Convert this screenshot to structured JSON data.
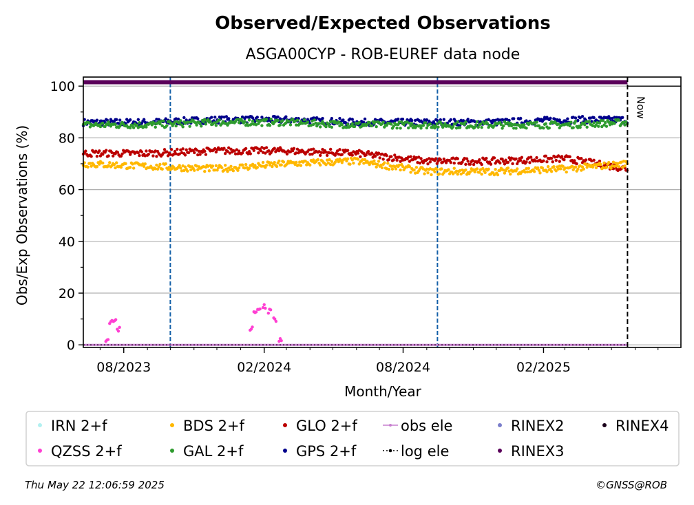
{
  "footer": {
    "timestamp": "Thu May 22 12:06:59 2025",
    "copyright": "©GNSS@ROB"
  },
  "chart_data": {
    "type": "scatter",
    "title": "Observed/Expected Observations",
    "subtitle": "ASGA00CYP - ROB-EUREF data node",
    "xlabel": "Month/Year",
    "ylabel": "Obs/Exp Observations (%)",
    "ylim": [
      -1,
      103.5
    ],
    "xlim": [
      "2023-06-09",
      "2025-07-31"
    ],
    "yticks": [
      0,
      20,
      40,
      60,
      80,
      100
    ],
    "xticks": [
      {
        "date": "2023-08-01",
        "label": "08/2023"
      },
      {
        "date": "2024-02-01",
        "label": "02/2024"
      },
      {
        "date": "2024-08-01",
        "label": "08/2024"
      },
      {
        "date": "2025-02-01",
        "label": "02/2025"
      }
    ],
    "grid": "horizontal",
    "now_label": "Now",
    "now_date": "2025-05-22",
    "event_lines": [
      "2023-10-01",
      "2024-09-15"
    ],
    "legend_position": "bottom",
    "legend": [
      {
        "name": "IRN 2+f",
        "color": "#b2f0f0",
        "marker": "dot"
      },
      {
        "name": "QZSS 2+f",
        "color": "#ff3fd2",
        "marker": "dot"
      },
      {
        "name": "BDS 2+f",
        "color": "#ffb800",
        "marker": "dot"
      },
      {
        "name": "GAL 2+f",
        "color": "#2e9b2e",
        "marker": "dot"
      },
      {
        "name": "GLO 2+f",
        "color": "#bb0000",
        "marker": "dot"
      },
      {
        "name": "GPS 2+f",
        "color": "#00008b",
        "marker": "dot"
      },
      {
        "name": "obs ele",
        "color": "#c77fcf",
        "marker": "line"
      },
      {
        "name": "log ele",
        "color": "#000000",
        "marker": "dotted-line"
      },
      {
        "name": "RINEX2",
        "color": "#7b7fcb",
        "marker": "dot"
      },
      {
        "name": "RINEX3",
        "color": "#5a005a",
        "marker": "dot"
      },
      {
        "name": "RINEX4",
        "color": "#1a001a",
        "marker": "dot"
      }
    ],
    "series": [
      {
        "name": "GPS 2+f",
        "color": "#00008b",
        "x": [
          "2023-06-09",
          "2023-09-01",
          "2023-12-01",
          "2024-03-01",
          "2024-06-01",
          "2024-09-01",
          "2024-12-01",
          "2025-03-01",
          "2025-05-22"
        ],
        "y": [
          86,
          86,
          87,
          87,
          86,
          86,
          86,
          87,
          87
        ]
      },
      {
        "name": "GAL 2+f",
        "color": "#2e9b2e",
        "x": [
          "2023-06-09",
          "2023-09-01",
          "2023-12-01",
          "2024-03-01",
          "2024-06-01",
          "2024-09-01",
          "2024-12-01",
          "2025-03-01",
          "2025-05-22"
        ],
        "y": [
          85,
          85,
          86,
          86,
          85,
          85,
          85,
          85,
          86
        ]
      },
      {
        "name": "GLO 2+f",
        "color": "#bb0000",
        "x": [
          "2023-06-09",
          "2023-09-01",
          "2023-12-01",
          "2024-03-01",
          "2024-06-01",
          "2024-09-01",
          "2024-12-01",
          "2025-03-01",
          "2025-05-22"
        ],
        "y": [
          74,
          74,
          75,
          75,
          74,
          71,
          71,
          72,
          68
        ]
      },
      {
        "name": "BDS 2+f",
        "color": "#ffb800",
        "x": [
          "2023-06-09",
          "2023-09-01",
          "2023-12-01",
          "2024-03-01",
          "2024-06-01",
          "2024-09-01",
          "2024-12-01",
          "2025-03-01",
          "2025-05-22"
        ],
        "y": [
          70,
          69,
          68,
          70,
          71,
          67,
          67,
          68,
          70
        ]
      },
      {
        "name": "QZSS 2+f",
        "color": "#ff3fd2",
        "x": [
          "2023-07-10",
          "2023-07-15",
          "2023-07-20",
          "2023-07-25",
          "2024-01-15",
          "2024-01-20",
          "2024-01-25",
          "2024-02-01",
          "2024-02-08",
          "2024-02-15",
          "2024-02-22"
        ],
        "y": [
          2,
          9,
          10,
          6,
          6,
          12,
          14,
          15,
          13,
          10,
          2
        ]
      },
      {
        "name": "RINEX3",
        "color": "#5a005a",
        "x": [
          "2023-06-09",
          "2025-05-22"
        ],
        "y": [
          101.5,
          101.5
        ]
      },
      {
        "name": "obs ele",
        "color": "#c77fcf",
        "x": [
          "2023-06-09",
          "2025-05-22"
        ],
        "y": [
          0,
          0
        ]
      }
    ]
  }
}
